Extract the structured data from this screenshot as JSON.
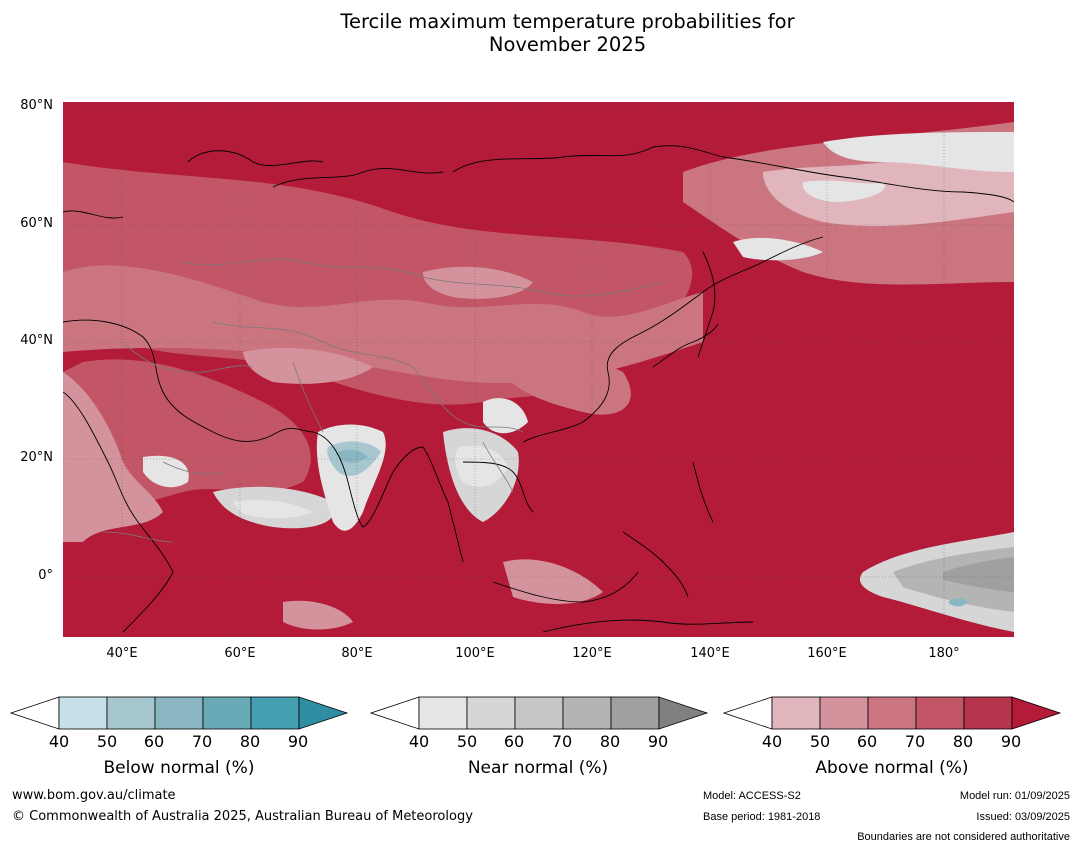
{
  "title": {
    "line1": "Tercile maximum temperature probabilities for",
    "line2": "November 2025"
  },
  "axes": {
    "lat_labels": [
      "80°N",
      "60°N",
      "40°N",
      "20°N",
      "0°"
    ],
    "lon_labels": [
      "40°E",
      "60°E",
      "80°E",
      "100°E",
      "120°E",
      "140°E",
      "160°E",
      "180°"
    ]
  },
  "colorbars": [
    {
      "label": "Below normal (%)",
      "ticks": [
        "40",
        "50",
        "60",
        "70",
        "80",
        "90"
      ],
      "colors": [
        "#ffffff",
        "#c8e0e7",
        "#a6c7ce",
        "#89b6c1",
        "#6aaab7",
        "#449fb0",
        "#2f8ea3"
      ]
    },
    {
      "label": "Near normal (%)",
      "ticks": [
        "40",
        "50",
        "60",
        "70",
        "80",
        "90"
      ],
      "colors": [
        "#ffffff",
        "#e5e5e5",
        "#d6d6d6",
        "#c6c6c6",
        "#b4b4b4",
        "#a0a0a0",
        "#808080"
      ]
    },
    {
      "label": "Above normal (%)",
      "ticks": [
        "40",
        "50",
        "60",
        "70",
        "80",
        "90"
      ],
      "colors": [
        "#ffffff",
        "#e0b5bb",
        "#d4939c",
        "#cb7581",
        "#c25566",
        "#b6344c",
        "#b31b38"
      ]
    }
  ],
  "footer": {
    "website": "www.bom.gov.au/climate",
    "copyright": "© Commonwealth of Australia 2025, Australian Bureau of Meteorology",
    "model": "Model: ACCESS-S2",
    "base_period": "Base period: 1981-2018",
    "model_run": "Model run: 01/09/2025",
    "issued": "Issued: 03/09/2025",
    "disclaimer": "Boundaries are not considered authoritative"
  }
}
